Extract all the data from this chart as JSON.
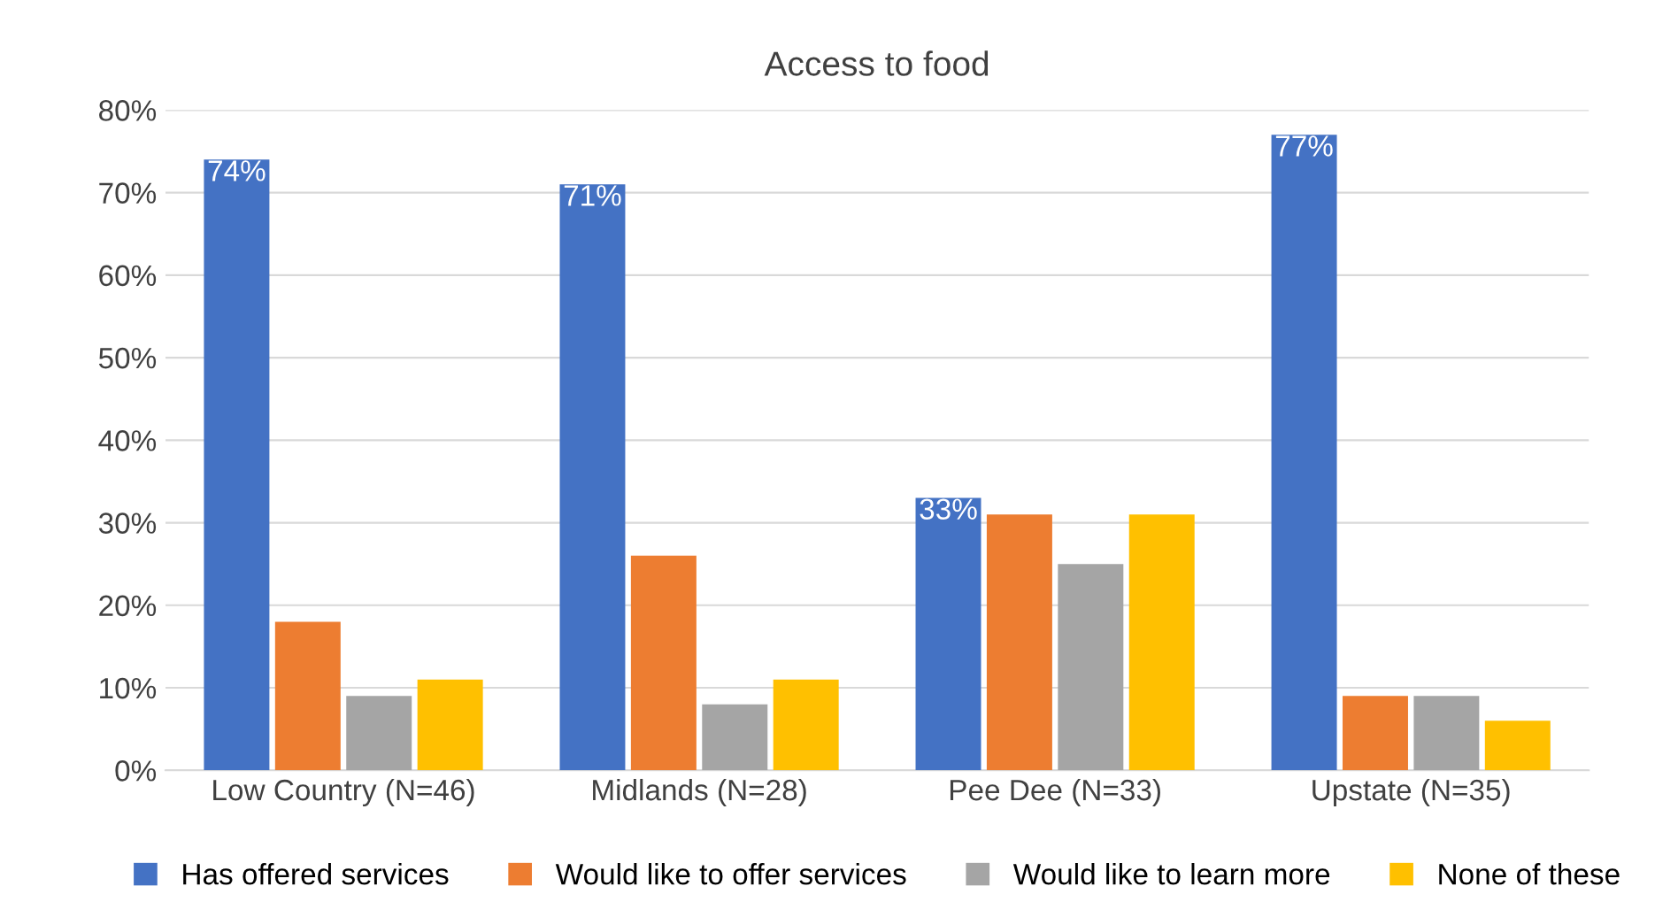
{
  "chart_data": {
    "type": "bar",
    "title": "Access to food",
    "categories": [
      "Low Country (N=46)",
      "Midlands (N=28)",
      "Pee Dee (N=33)",
      "Upstate (N=35)"
    ],
    "series": [
      {
        "name": "Has offered services",
        "color": "#4472c4",
        "values": [
          74,
          71,
          33,
          77
        ],
        "value_labels": [
          "74%",
          "71%",
          "33%",
          "77%"
        ]
      },
      {
        "name": "Would like to offer services",
        "color": "#ed7d31",
        "values": [
          18,
          26,
          31,
          9
        ]
      },
      {
        "name": "Would like to learn more",
        "color": "#a5a5a5",
        "values": [
          9,
          8,
          25,
          9
        ]
      },
      {
        "name": "None of these",
        "color": "#ffc000",
        "values": [
          11,
          11,
          31,
          6
        ]
      }
    ],
    "ylim": [
      0,
      80
    ],
    "yticks": [
      {
        "value": 0,
        "label": "0%"
      },
      {
        "value": 10,
        "label": "10%"
      },
      {
        "value": 20,
        "label": "20%"
      },
      {
        "value": 30,
        "label": "30%"
      },
      {
        "value": 40,
        "label": "40%"
      },
      {
        "value": 50,
        "label": "50%"
      },
      {
        "value": 60,
        "label": "60%"
      },
      {
        "value": 70,
        "label": "70%"
      },
      {
        "value": 80,
        "label": "80%"
      }
    ],
    "grid": "y",
    "legend": "bottom"
  }
}
